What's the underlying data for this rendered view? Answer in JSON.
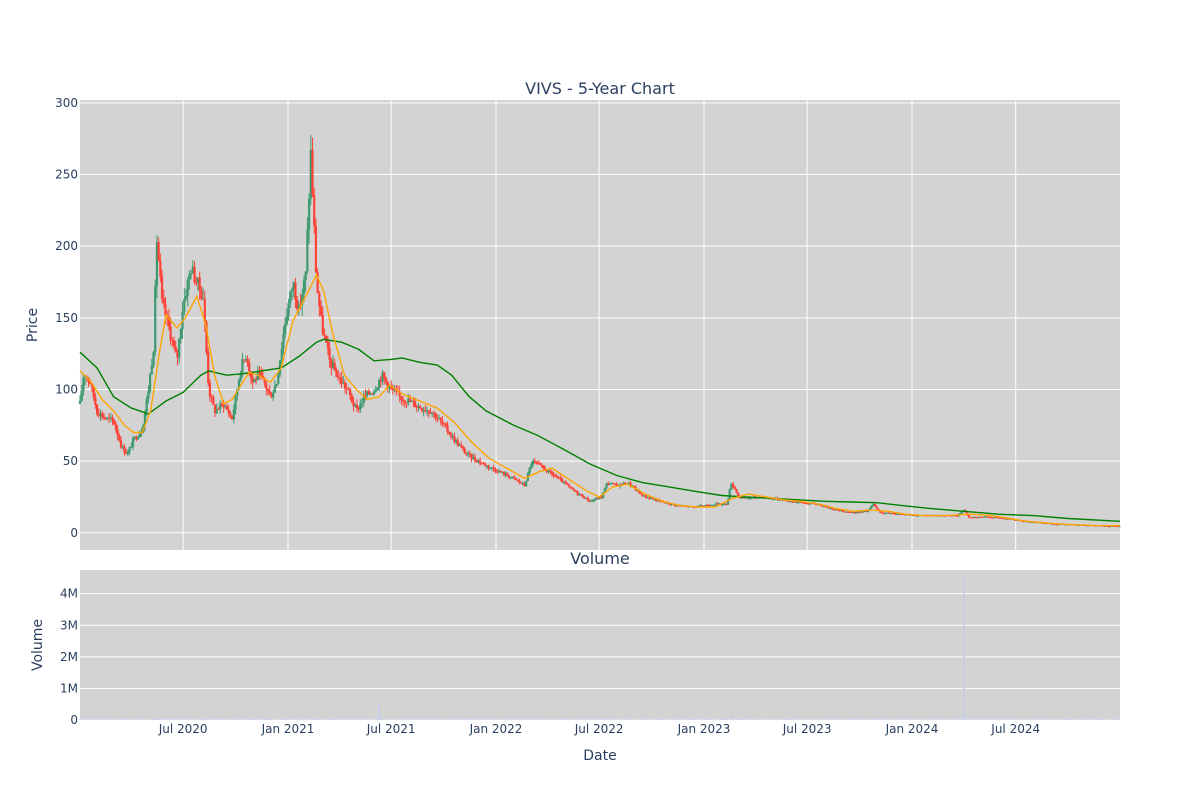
{
  "chart_data": [
    {
      "type": "candlestick",
      "title": "VIVS - 5-Year Chart",
      "ylabel": "Price",
      "ylim": [
        -12,
        302
      ],
      "y_ticks": [
        0,
        50,
        100,
        150,
        200,
        250,
        300
      ],
      "x_range": [
        "2020-01-02",
        "2024-12-31"
      ],
      "grid": true,
      "legend": "none",
      "colors": {
        "plot_bg": "#d3d3d3",
        "grid": "#ffffff",
        "up": "#3d9970",
        "down": "#ff4136",
        "ma_short": "#ffa500",
        "ma_long": "#008000",
        "text": "#2a3f5f"
      },
      "close_series": [
        [
          "2020-01-02",
          90
        ],
        [
          "2020-01-09",
          112
        ],
        [
          "2020-01-20",
          105
        ],
        [
          "2020-02-01",
          85
        ],
        [
          "2020-02-15",
          80
        ],
        [
          "2020-03-01",
          78
        ],
        [
          "2020-03-15",
          60
        ],
        [
          "2020-03-25",
          55
        ],
        [
          "2020-04-05",
          65
        ],
        [
          "2020-04-20",
          72
        ],
        [
          "2020-05-01",
          100
        ],
        [
          "2020-05-10",
          130
        ],
        [
          "2020-05-16",
          205
        ],
        [
          "2020-05-25",
          160
        ],
        [
          "2020-06-05",
          145
        ],
        [
          "2020-06-20",
          120
        ],
        [
          "2020-07-01",
          160
        ],
        [
          "2020-07-15",
          185
        ],
        [
          "2020-07-25",
          175
        ],
        [
          "2020-08-05",
          165
        ],
        [
          "2020-08-15",
          100
        ],
        [
          "2020-08-25",
          85
        ],
        [
          "2020-09-10",
          90
        ],
        [
          "2020-09-25",
          80
        ],
        [
          "2020-10-10",
          115
        ],
        [
          "2020-10-20",
          125
        ],
        [
          "2020-10-30",
          105
        ],
        [
          "2020-11-10",
          110
        ],
        [
          "2020-11-20",
          105
        ],
        [
          "2020-12-01",
          95
        ],
        [
          "2020-12-12",
          105
        ],
        [
          "2020-12-28",
          150
        ],
        [
          "2021-01-10",
          175
        ],
        [
          "2021-01-20",
          155
        ],
        [
          "2021-02-01",
          180
        ],
        [
          "2021-02-10",
          265
        ],
        [
          "2021-02-20",
          175
        ],
        [
          "2021-03-01",
          145
        ],
        [
          "2021-03-15",
          120
        ],
        [
          "2021-03-28",
          110
        ],
        [
          "2021-04-15",
          100
        ],
        [
          "2021-05-01",
          85
        ],
        [
          "2021-05-15",
          95
        ],
        [
          "2021-06-01",
          100
        ],
        [
          "2021-06-15",
          110
        ],
        [
          "2021-07-01",
          100
        ],
        [
          "2021-07-15",
          95
        ],
        [
          "2021-08-01",
          92
        ],
        [
          "2021-08-20",
          88
        ],
        [
          "2021-09-10",
          85
        ],
        [
          "2021-10-01",
          75
        ],
        [
          "2021-10-20",
          65
        ],
        [
          "2021-11-10",
          55
        ],
        [
          "2021-12-10",
          48
        ],
        [
          "2022-01-10",
          42
        ],
        [
          "2022-02-01",
          38
        ],
        [
          "2022-02-20",
          33
        ],
        [
          "2022-03-05",
          50
        ],
        [
          "2022-03-25",
          45
        ],
        [
          "2022-04-20",
          38
        ],
        [
          "2022-05-15",
          30
        ],
        [
          "2022-06-15",
          22
        ],
        [
          "2022-07-05",
          25
        ],
        [
          "2022-07-15",
          35
        ],
        [
          "2022-08-01",
          33
        ],
        [
          "2022-08-20",
          35
        ],
        [
          "2022-09-15",
          26
        ],
        [
          "2022-10-15",
          22
        ],
        [
          "2022-11-15",
          19
        ],
        [
          "2022-12-15",
          18
        ],
        [
          "2023-01-15",
          20
        ],
        [
          "2023-02-10",
          20
        ],
        [
          "2023-02-18",
          35
        ],
        [
          "2023-03-05",
          24
        ],
        [
          "2023-04-10",
          25
        ],
        [
          "2023-05-20",
          23
        ],
        [
          "2023-06-20",
          21
        ],
        [
          "2023-07-20",
          20
        ],
        [
          "2023-08-20",
          16
        ],
        [
          "2023-09-20",
          14
        ],
        [
          "2023-10-15",
          15
        ],
        [
          "2023-10-25",
          20
        ],
        [
          "2023-11-05",
          14
        ],
        [
          "2023-12-15",
          13
        ],
        [
          "2024-01-15",
          12
        ],
        [
          "2024-02-15",
          12
        ],
        [
          "2024-03-20",
          12
        ],
        [
          "2024-04-01",
          16
        ],
        [
          "2024-04-10",
          11
        ],
        [
          "2024-05-15",
          11
        ],
        [
          "2024-06-15",
          10
        ],
        [
          "2024-07-15",
          8
        ],
        [
          "2024-08-15",
          7
        ],
        [
          "2024-09-15",
          6
        ],
        [
          "2024-10-15",
          5.5
        ],
        [
          "2024-11-15",
          5
        ],
        [
          "2024-12-31",
          4.5
        ]
      ],
      "ma_short": [
        [
          "2020-01-02",
          113
        ],
        [
          "2020-01-20",
          106
        ],
        [
          "2020-02-10",
          93
        ],
        [
          "2020-03-01",
          85
        ],
        [
          "2020-03-20",
          75
        ],
        [
          "2020-04-05",
          70
        ],
        [
          "2020-04-20",
          70
        ],
        [
          "2020-05-05",
          85
        ],
        [
          "2020-05-20",
          125
        ],
        [
          "2020-06-01",
          152
        ],
        [
          "2020-06-20",
          143
        ],
        [
          "2020-07-05",
          150
        ],
        [
          "2020-07-25",
          165
        ],
        [
          "2020-08-10",
          145
        ],
        [
          "2020-08-25",
          110
        ],
        [
          "2020-09-10",
          90
        ],
        [
          "2020-09-25",
          93
        ],
        [
          "2020-10-10",
          103
        ],
        [
          "2020-10-25",
          112
        ],
        [
          "2020-11-10",
          110
        ],
        [
          "2020-12-01",
          105
        ],
        [
          "2020-12-20",
          115
        ],
        [
          "2021-01-10",
          148
        ],
        [
          "2021-02-01",
          165
        ],
        [
          "2021-02-20",
          180
        ],
        [
          "2021-03-05",
          168
        ],
        [
          "2021-03-20",
          140
        ],
        [
          "2021-04-10",
          110
        ],
        [
          "2021-05-01",
          100
        ],
        [
          "2021-05-20",
          93
        ],
        [
          "2021-06-10",
          95
        ],
        [
          "2021-06-28",
          103
        ],
        [
          "2021-07-20",
          97
        ],
        [
          "2021-08-20",
          92
        ],
        [
          "2021-09-20",
          87
        ],
        [
          "2021-10-20",
          77
        ],
        [
          "2021-11-20",
          63
        ],
        [
          "2021-12-20",
          52
        ],
        [
          "2022-01-20",
          45
        ],
        [
          "2022-02-20",
          38
        ],
        [
          "2022-03-20",
          43
        ],
        [
          "2022-04-10",
          45
        ],
        [
          "2022-05-10",
          37
        ],
        [
          "2022-06-10",
          29
        ],
        [
          "2022-07-01",
          25
        ],
        [
          "2022-07-25",
          32
        ],
        [
          "2022-08-20",
          34
        ],
        [
          "2022-09-20",
          27
        ],
        [
          "2022-10-20",
          22
        ],
        [
          "2022-11-20",
          19
        ],
        [
          "2022-12-20",
          18
        ],
        [
          "2023-01-20",
          18
        ],
        [
          "2023-02-20",
          24
        ],
        [
          "2023-03-20",
          27
        ],
        [
          "2023-04-20",
          25
        ],
        [
          "2023-05-20",
          23
        ],
        [
          "2023-06-20",
          22
        ],
        [
          "2023-07-20",
          20
        ],
        [
          "2023-08-20",
          17
        ],
        [
          "2023-09-20",
          15
        ],
        [
          "2023-10-20",
          16
        ],
        [
          "2023-11-20",
          15
        ],
        [
          "2023-12-20",
          13
        ],
        [
          "2024-01-20",
          12
        ],
        [
          "2024-03-01",
          12
        ],
        [
          "2024-04-15",
          13
        ],
        [
          "2024-05-20",
          12
        ],
        [
          "2024-06-20",
          10
        ],
        [
          "2024-07-20",
          8
        ],
        [
          "2024-08-20",
          7
        ],
        [
          "2024-09-20",
          6
        ],
        [
          "2024-10-20",
          5.5
        ],
        [
          "2024-11-20",
          5
        ],
        [
          "2024-12-31",
          5
        ]
      ],
      "ma_long": [
        [
          "2020-01-02",
          126
        ],
        [
          "2020-02-01",
          115
        ],
        [
          "2020-03-01",
          95
        ],
        [
          "2020-04-01",
          87
        ],
        [
          "2020-05-01",
          83
        ],
        [
          "2020-06-01",
          92
        ],
        [
          "2020-07-01",
          98
        ],
        [
          "2020-08-01",
          110
        ],
        [
          "2020-08-15",
          113
        ],
        [
          "2020-09-15",
          110
        ],
        [
          "2020-10-15",
          111
        ],
        [
          "2020-11-15",
          113
        ],
        [
          "2020-12-20",
          115
        ],
        [
          "2021-01-20",
          123
        ],
        [
          "2021-02-20",
          133
        ],
        [
          "2021-03-05",
          135
        ],
        [
          "2021-04-05",
          133
        ],
        [
          "2021-05-05",
          128
        ],
        [
          "2021-06-01",
          120
        ],
        [
          "2021-07-01",
          121
        ],
        [
          "2021-07-20",
          122
        ],
        [
          "2021-08-20",
          119
        ],
        [
          "2021-09-20",
          117
        ],
        [
          "2021-10-15",
          110
        ],
        [
          "2021-11-15",
          95
        ],
        [
          "2021-12-15",
          85
        ],
        [
          "2022-02-01",
          75
        ],
        [
          "2022-03-15",
          68
        ],
        [
          "2022-05-01",
          58
        ],
        [
          "2022-06-15",
          48
        ],
        [
          "2022-08-01",
          40
        ],
        [
          "2022-09-15",
          35
        ],
        [
          "2022-11-01",
          32
        ],
        [
          "2022-12-15",
          29
        ],
        [
          "2023-02-01",
          26
        ],
        [
          "2023-03-15",
          25
        ],
        [
          "2023-05-01",
          24
        ],
        [
          "2023-06-15",
          23
        ],
        [
          "2023-08-01",
          22
        ],
        [
          "2023-09-15",
          21.5
        ],
        [
          "2023-11-01",
          21
        ],
        [
          "2023-12-15",
          19
        ],
        [
          "2024-02-01",
          17
        ],
        [
          "2024-04-01",
          15
        ],
        [
          "2024-06-01",
          13
        ],
        [
          "2024-08-01",
          12
        ],
        [
          "2024-10-01",
          10
        ],
        [
          "2024-12-31",
          8
        ]
      ]
    },
    {
      "type": "bar",
      "title": "Volume",
      "xlabel": "Date",
      "ylabel": "Volume",
      "ylim": [
        0,
        4750000
      ],
      "y_ticks": [
        {
          "value": 0,
          "label": "0"
        },
        {
          "value": 1000000,
          "label": "1M"
        },
        {
          "value": 2000000,
          "label": "2M"
        },
        {
          "value": 3000000,
          "label": "3M"
        },
        {
          "value": 4000000,
          "label": "4M"
        }
      ],
      "x_ticks": [
        {
          "date": "2020-07-01",
          "label": "Jul 2020"
        },
        {
          "date": "2021-01-01",
          "label": "Jan 2021"
        },
        {
          "date": "2021-07-01",
          "label": "Jul 2021"
        },
        {
          "date": "2022-01-01",
          "label": "Jan 2022"
        },
        {
          "date": "2022-07-01",
          "label": "Jul 2022"
        },
        {
          "date": "2023-01-01",
          "label": "Jan 2023"
        },
        {
          "date": "2023-07-01",
          "label": "Jul 2023"
        },
        {
          "date": "2024-01-01",
          "label": "Jan 2024"
        },
        {
          "date": "2024-07-01",
          "label": "Jul 2024"
        }
      ],
      "bar_color": "#c5cdf0",
      "volumes": [
        [
          "2020-05-16",
          60000
        ],
        [
          "2021-02-10",
          90000
        ],
        [
          "2021-06-10",
          550000
        ],
        [
          "2022-07-10",
          70000
        ],
        [
          "2023-02-18",
          80000
        ],
        [
          "2023-10-25",
          60000
        ],
        [
          "2024-04-01",
          4600000
        ]
      ]
    }
  ]
}
